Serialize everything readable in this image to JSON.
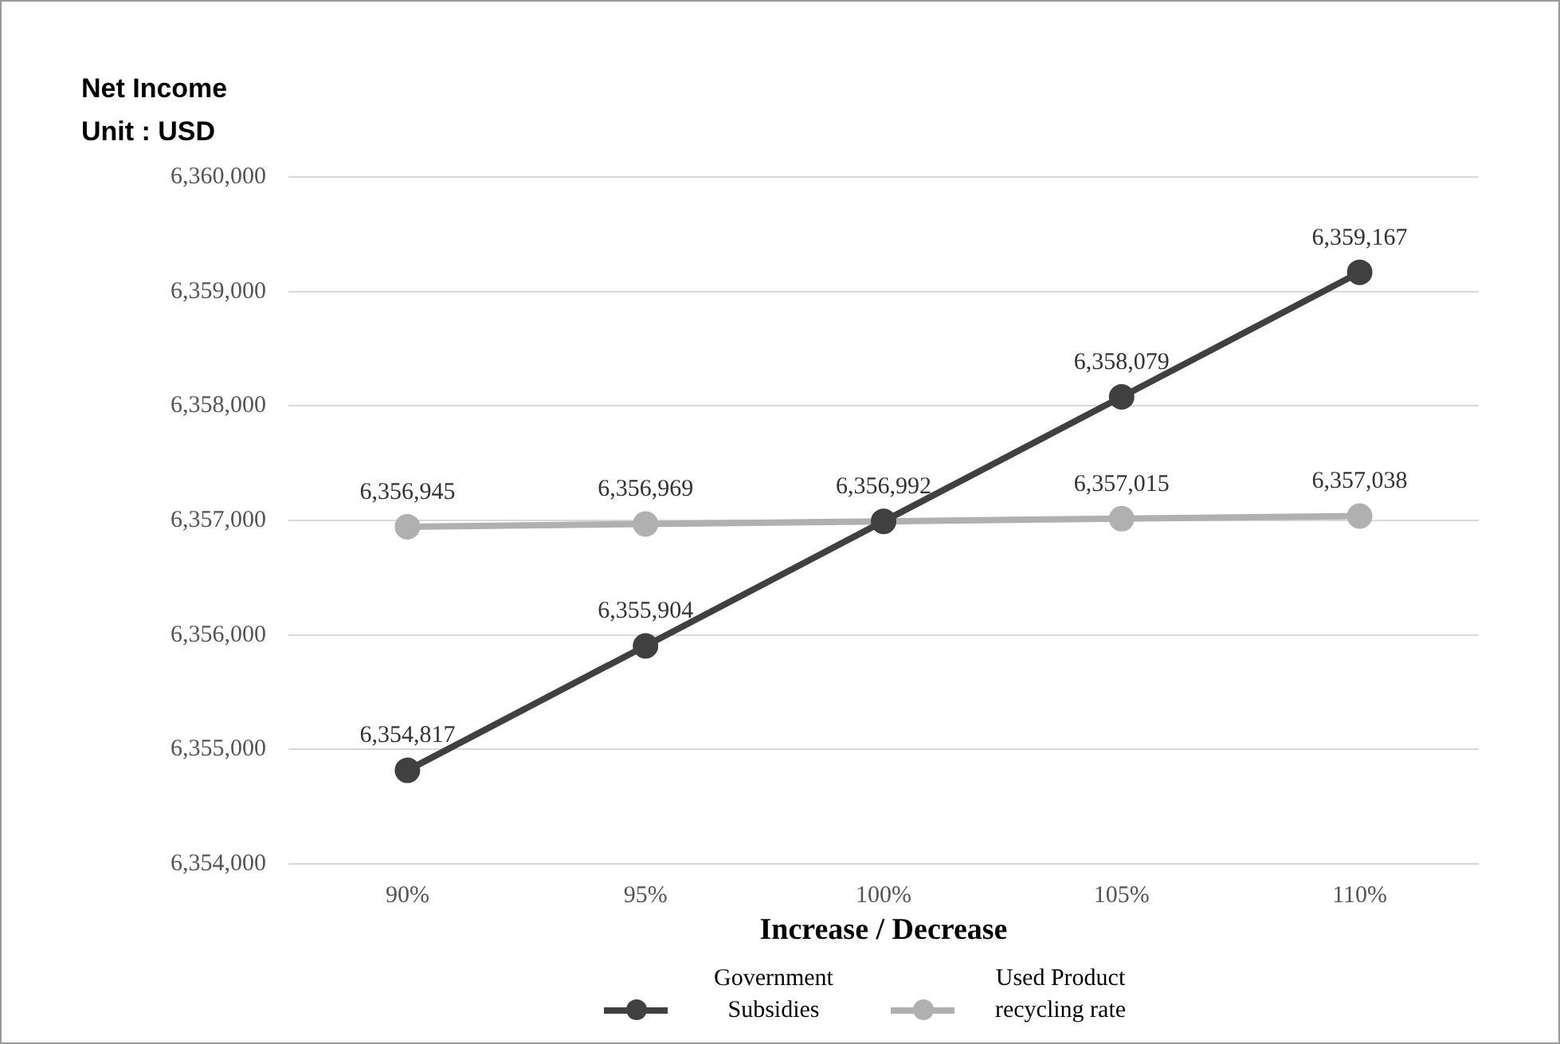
{
  "chart_data": {
    "type": "line",
    "ylabel": "Net Income",
    "annotations": [
      "Unit : USD"
    ],
    "xlabel": "Increase / Decrease",
    "categories": [
      "90%",
      "95%",
      "100%",
      "105%",
      "110%"
    ],
    "series": [
      {
        "name": "Government Subsidies",
        "color": "#404040",
        "values": [
          6354817,
          6355904,
          6356992,
          6358079,
          6359167
        ],
        "value_labels": [
          "6,354,817",
          "6,355,904",
          null,
          "6,358,079",
          "6,359,167"
        ]
      },
      {
        "name": "Used Product recycling rate",
        "color": "#b0b0b0",
        "values": [
          6356945,
          6356969,
          6356992,
          6357015,
          6357038
        ],
        "value_labels": [
          "6,356,945",
          "6,356,969",
          "6,356,992",
          "6,357,015",
          "6,357,038"
        ]
      }
    ],
    "ylim": [
      6354000,
      6360000
    ],
    "yticks": [
      {
        "value": 6354000,
        "label": "6,354,000"
      },
      {
        "value": 6355000,
        "label": "6,355,000"
      },
      {
        "value": 6356000,
        "label": "6,356,000"
      },
      {
        "value": 6357000,
        "label": "6,357,000"
      },
      {
        "value": 6358000,
        "label": "6,358,000"
      },
      {
        "value": 6359000,
        "label": "6,359,000"
      },
      {
        "value": 6360000,
        "label": "6,360,000"
      }
    ],
    "grid": "y",
    "legend": "bottom",
    "marker": "circle",
    "line_style": "solid"
  }
}
